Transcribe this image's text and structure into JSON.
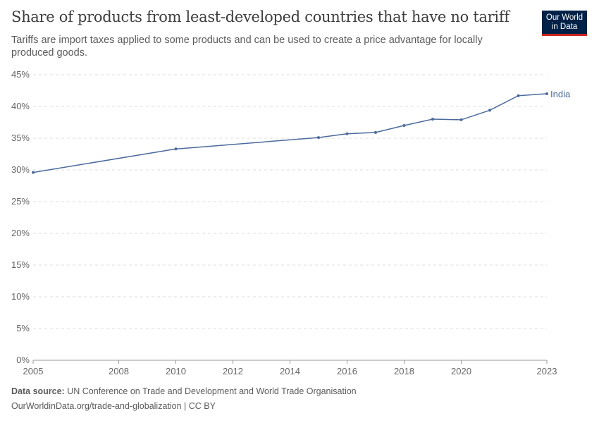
{
  "header": {
    "title": "Share of products from least-developed countries that have no tariff",
    "subtitle": "Tariffs are import taxes applied to some products and can be used to create a price advantage for locally produced goods.",
    "logo": "Our World in Data"
  },
  "footer": {
    "source_label": "Data source:",
    "source": "UN Conference on Trade and Development and World Trade Organisation",
    "link": "OurWorldinData.org/trade-and-globalization | CC BY"
  },
  "chart_data": {
    "type": "line",
    "title": "Share of products from least-developed countries that have no tariff",
    "x": [
      2005,
      2010,
      2015,
      2016,
      2017,
      2018,
      2019,
      2020,
      2021,
      2022,
      2023
    ],
    "series": [
      {
        "name": "India",
        "color": "#4c6a9c",
        "values": [
          29.6,
          33.3,
          35.1,
          35.7,
          35.9,
          37.0,
          38.0,
          37.9,
          39.4,
          41.7,
          42.0
        ]
      }
    ],
    "xlim": [
      2005,
      2023
    ],
    "ylim": [
      0,
      45
    ],
    "x_ticks": [
      "2005",
      "2008",
      "2010",
      "2012",
      "2014",
      "2016",
      "2018",
      "2020",
      "2023"
    ],
    "y_ticks": [
      "0%",
      "5%",
      "10%",
      "15%",
      "20%",
      "25%",
      "30%",
      "35%",
      "40%",
      "45%"
    ],
    "grid": "horizontal dashed",
    "legend": "inline-right"
  }
}
